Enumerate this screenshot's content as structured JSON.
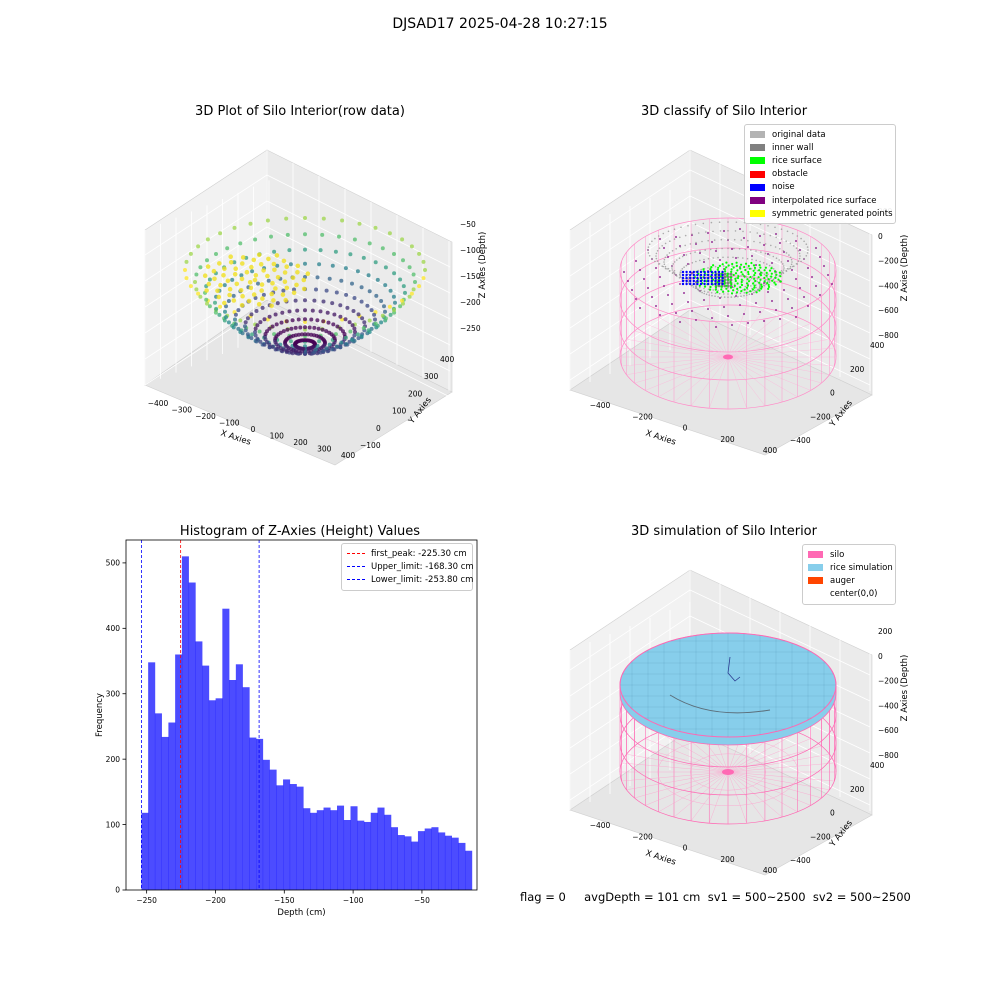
{
  "suptitle": "DJSAD17 2025-04-28 10:27:15",
  "status_line": "flag = 0     avgDepth = 101 cm  sv1 = 500~2500  sv2 = 500~2500",
  "chart_data": [
    {
      "type": "scatter",
      "title": "3D Plot of Silo Interior(row data)",
      "xlabel": "X Axies",
      "ylabel": "Y Axies",
      "zlabel": "Z Axies (Depth)",
      "x_ticks": [
        "−400",
        "−300",
        "−200",
        "−100",
        "0",
        "100",
        "200",
        "300",
        "400"
      ],
      "y_ticks": [
        "−100",
        "0",
        "100",
        "200",
        "300",
        "400"
      ],
      "z_ticks": [
        "−50",
        "−100",
        "−150",
        "−200",
        "−250"
      ],
      "colormap": "viridis"
    },
    {
      "type": "scatter",
      "title": "3D classify of Silo Interior",
      "xlabel": "X Axies",
      "ylabel": "Y Axies",
      "zlabel": "Z Axies (Depth)",
      "x_ticks": [
        "−400",
        "−200",
        "0",
        "200",
        "400"
      ],
      "y_ticks": [
        "−400",
        "−200",
        "0",
        "200",
        "400"
      ],
      "z_ticks": [
        "200",
        "0",
        "−200",
        "−400",
        "−600",
        "−800"
      ],
      "legend": [
        {
          "label": "original data",
          "color": "#b3b3b3"
        },
        {
          "label": "inner wall",
          "color": "#808080"
        },
        {
          "label": "rice surface",
          "color": "#00ff00"
        },
        {
          "label": "obstacle",
          "color": "#ff0000"
        },
        {
          "label": "noise",
          "color": "#0000ff"
        },
        {
          "label": "interpolated rice surface",
          "color": "#800080"
        },
        {
          "label": "symmetric generated points",
          "color": "#ffff00"
        }
      ]
    },
    {
      "type": "bar",
      "title": "Histogram of Z-Axies (Height) Values",
      "xlabel": "Depth (cm)",
      "ylabel": "Frequency",
      "xlim": [
        -265,
        -10
      ],
      "ylim": [
        0,
        535
      ],
      "x_ticks": [
        -250,
        -200,
        -150,
        -100,
        -50
      ],
      "y_ticks": [
        0,
        100,
        200,
        300,
        400,
        500
      ],
      "bin_start": -253.8,
      "bin_width": 4.9,
      "values": [
        118,
        348,
        270,
        234,
        256,
        360,
        510,
        470,
        380,
        343,
        290,
        293,
        430,
        321,
        345,
        310,
        233,
        231,
        199,
        184,
        160,
        169,
        162,
        158,
        125,
        118,
        122,
        126,
        122,
        129,
        107,
        128,
        106,
        104,
        118,
        126,
        115,
        96,
        84,
        82,
        74,
        90,
        94,
        96,
        88,
        83,
        80,
        72,
        60
      ],
      "bar_color": "#0000ff",
      "lines": [
        {
          "label": "first_peak: -225.30 cm",
          "x": -225.3,
          "color": "#ff0000"
        },
        {
          "label": "Upper_limit: -168.30 cm",
          "x": -168.3,
          "color": "#0000ff"
        },
        {
          "label": "Lower_limit: -253.80 cm",
          "x": -253.8,
          "color": "#0000ff"
        }
      ],
      "legend_position": "top-right"
    },
    {
      "type": "scatter",
      "title": "3D simulation of Silo Interior",
      "xlabel": "X Axies",
      "ylabel": "Y Axies",
      "zlabel": "Z Axies (Depth)",
      "x_ticks": [
        "−400",
        "−200",
        "0",
        "200",
        "400"
      ],
      "y_ticks": [
        "−400",
        "−200",
        "0",
        "200",
        "400"
      ],
      "z_ticks": [
        "200",
        "0",
        "−200",
        "−400",
        "−600",
        "−800"
      ],
      "legend": [
        {
          "label": "silo",
          "color": "#ff69b4"
        },
        {
          "label": "rice simulation",
          "color": "#87ceeb"
        },
        {
          "label": "auger",
          "color": "#ff4500"
        },
        {
          "label": "center(0,0)",
          "color": "#ffffff"
        }
      ]
    }
  ]
}
